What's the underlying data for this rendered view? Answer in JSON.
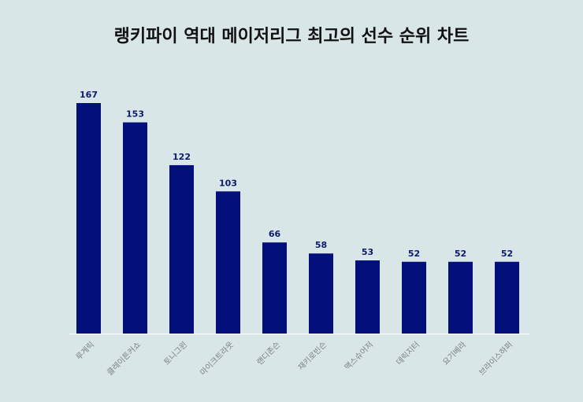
{
  "title": "랭키파이 역대 메이저리그 최고의 선수 순위 차트",
  "colors": {
    "background": "#d9e6e8",
    "bar": "#030f7a",
    "value_label": "#0b1a6e",
    "tick_label": "#7a7f86",
    "axis": "#ffffff"
  },
  "chart_data": {
    "type": "bar",
    "title": "랭키파이 역대 메이저리그 최고의 선수 순위 차트",
    "xlabel": "",
    "ylabel": "",
    "categories": [
      "루게릭",
      "클레이튼커쇼",
      "토니그윈",
      "마이크트라웃",
      "랜디존슨",
      "재키로빈슨",
      "맥스슈어저",
      "데릭지터",
      "요기베라",
      "브라이스하퍼"
    ],
    "values": [
      167,
      153,
      122,
      103,
      66,
      58,
      53,
      52,
      52,
      52
    ],
    "ylim": [
      0,
      167
    ],
    "grid": false,
    "legend": "none",
    "data_labels": true
  }
}
